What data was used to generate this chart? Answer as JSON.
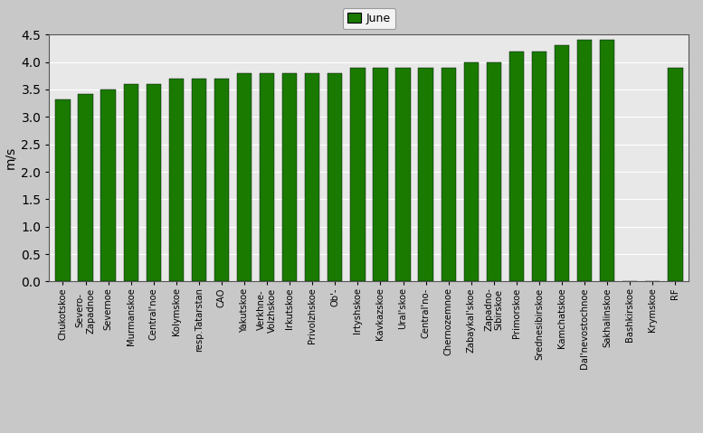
{
  "categories": [
    "Chukotskoe",
    "Severo-\nZapadnoe",
    "Severnoe",
    "Murmanskoe",
    "Central'noe",
    "Kolymskoe",
    "resp.Tatarstan",
    "CAO",
    "Yakutskoe",
    "Verkhne-\nVolzhskoe",
    "Irkutskoe",
    "Privolzhskoe",
    "Ob'-",
    "Irtyshskoe",
    "Kavkazskoe",
    "Ural'skoe",
    "Central'no-",
    "Chernozemnoe",
    "Zabaykal'skoe",
    "Zapadno-\nSibirskoe",
    "Primorskoe",
    "Srednesibirskoe",
    "Kamchatskoe",
    "Dal'nevostochnoe",
    "Sakhalinskoe",
    "Bashkirskoe",
    "Krymskoe",
    "RF"
  ],
  "values": [
    3.32,
    3.42,
    3.5,
    3.6,
    3.6,
    3.7,
    3.7,
    3.7,
    3.8,
    3.8,
    3.8,
    3.8,
    3.8,
    3.9,
    3.9,
    3.9,
    3.9,
    3.9,
    4.0,
    4.0,
    4.2,
    4.2,
    4.3,
    4.4,
    4.4,
    0.0,
    0.0,
    3.9
  ],
  "bar_color": "#1a7a00",
  "ylabel": "m/s",
  "ylim": [
    0,
    4.5
  ],
  "yticks": [
    0,
    0.5,
    1.0,
    1.5,
    2.0,
    2.5,
    3.0,
    3.5,
    4.0,
    4.5
  ],
  "legend_label": "June",
  "figure_bg_color": "#c8c8c8",
  "plot_bg_color": "#e8e8e8",
  "grid_color": "#ffffff",
  "bar_edge_color": "#000000"
}
